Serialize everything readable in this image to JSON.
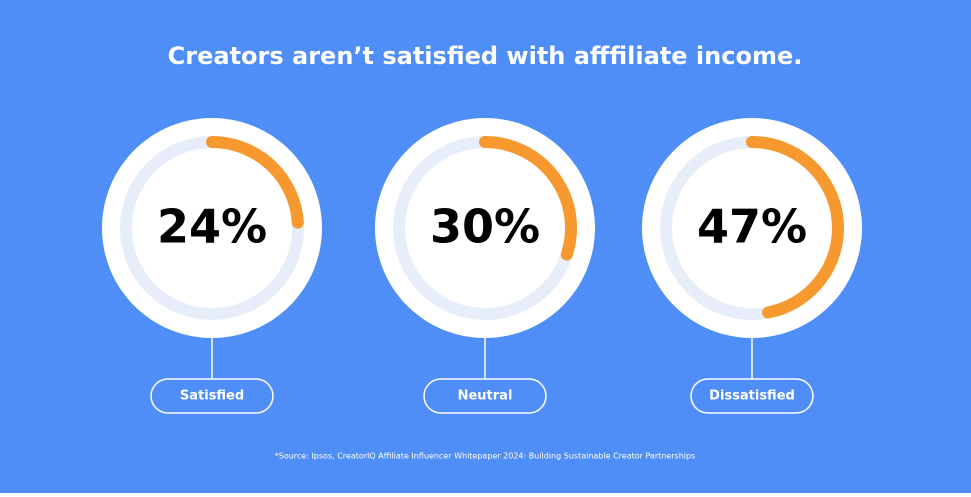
{
  "chart_data": {
    "type": "gauge",
    "title": "Creators aren’t satisfied with afffiliate income.",
    "categories": [
      "Satisfied",
      "Neutral",
      "Dissatisfied"
    ],
    "values": [
      24,
      30,
      47
    ],
    "value_labels": [
      "24%",
      "30%",
      "47%"
    ],
    "color": "#f7992f",
    "track_color": "#e7eef9",
    "source": "*Source: Ipsos, CreatorIQ Affiliate Influencer Whitepaper 2024: Building Sustainable Creator Partnerships"
  }
}
